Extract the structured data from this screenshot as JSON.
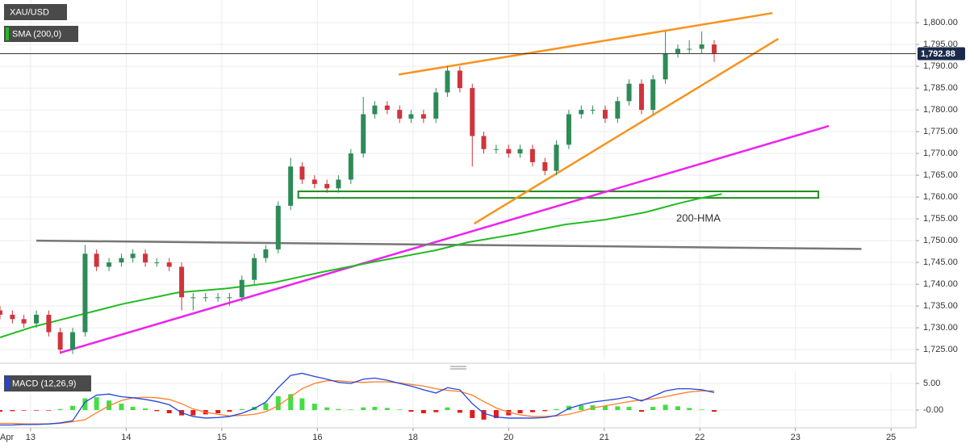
{
  "chart_data": [
    {
      "type": "candlestick",
      "title": "XAU/USD",
      "x": [
        -0.32,
        -0.19,
        -0.07,
        0.06,
        0.19,
        0.31,
        0.44,
        0.57,
        0.69,
        0.82,
        0.95,
        1.07,
        1.2,
        1.32,
        1.45,
        1.58,
        1.7,
        1.83,
        1.96,
        2.08,
        2.21,
        2.34,
        2.46,
        2.59,
        2.72,
        2.84,
        2.97,
        3.1,
        3.22,
        3.35,
        3.48,
        3.6,
        3.73,
        3.86,
        3.98,
        4.11,
        4.24,
        4.36,
        4.49,
        4.62,
        4.74,
        4.87,
        5.0,
        5.12,
        5.25,
        5.38,
        5.5,
        5.63,
        5.76,
        5.88,
        6.01,
        6.14,
        6.26,
        6.39,
        6.51,
        6.64,
        6.77,
        6.89,
        7.02,
        7.15
      ],
      "open": [
        1734,
        1733,
        1732,
        1731,
        1733,
        1729,
        1725,
        1729,
        1747,
        1744,
        1745,
        1746,
        1747,
        1745,
        1745,
        1744,
        1737,
        1737,
        1737,
        1737,
        1737,
        1741,
        1746,
        1748,
        1758,
        1767,
        1764,
        1763,
        1762,
        1764,
        1770,
        1779,
        1781,
        1780,
        1778,
        1779,
        1778,
        1784,
        1789,
        1785,
        1774,
        1771,
        1771,
        1770,
        1771,
        1768,
        1766,
        1772,
        1779,
        1780,
        1780,
        1778,
        1782,
        1786,
        1780,
        1787,
        1793,
        1794,
        1794,
        1795
      ],
      "high": [
        1735,
        1734,
        1733,
        1734,
        1734,
        1730,
        1730,
        1749,
        1748,
        1746,
        1747,
        1748,
        1748,
        1746,
        1746,
        1745,
        1738,
        1738,
        1738,
        1738,
        1742,
        1747,
        1749,
        1759,
        1769,
        1768,
        1765,
        1764,
        1765,
        1771,
        1783,
        1782,
        1782,
        1781,
        1780,
        1780,
        1785,
        1790,
        1790,
        1786,
        1775,
        1772,
        1772,
        1772,
        1772,
        1769,
        1773,
        1780,
        1781,
        1781,
        1781,
        1783,
        1787,
        1787,
        1788,
        1798,
        1795,
        1796,
        1798,
        1796
      ],
      "low": [
        1732,
        1731,
        1730,
        1730,
        1728,
        1724,
        1724,
        1728,
        1743,
        1743,
        1744,
        1745,
        1744,
        1744,
        1743,
        1734,
        1734,
        1736,
        1736,
        1735,
        1736,
        1740,
        1745,
        1747,
        1757,
        1763,
        1762,
        1761,
        1761,
        1763,
        1769,
        1778,
        1779,
        1777,
        1777,
        1777,
        1777,
        1783,
        1784,
        1767,
        1770,
        1770,
        1769,
        1769,
        1767,
        1765,
        1765,
        1771,
        1778,
        1779,
        1777,
        1777,
        1781,
        1779,
        1779,
        1786,
        1792,
        1793,
        1793,
        1791
      ],
      "close": [
        1733,
        1732,
        1731,
        1733,
        1729,
        1725,
        1729,
        1747,
        1744,
        1745,
        1746,
        1747,
        1745,
        1745,
        1744,
        1737,
        1737,
        1737,
        1737,
        1737,
        1741,
        1746,
        1748,
        1758,
        1767,
        1764,
        1763,
        1762,
        1764,
        1770,
        1779,
        1781,
        1780,
        1778,
        1779,
        1778,
        1784,
        1789,
        1785,
        1774,
        1771,
        1771,
        1770,
        1771,
        1768,
        1766,
        1772,
        1779,
        1780,
        1780,
        1778,
        1782,
        1786,
        1780,
        1787,
        1793,
        1794,
        1794,
        1795,
        1793
      ],
      "up_color": "#2e8b57",
      "down_color": "#d0343b",
      "xlim": [
        -0.32,
        9.26
      ],
      "ylim": [
        1722.8,
        1805.2
      ],
      "month_label": "Apr",
      "xticks": [
        {
          "value": 0,
          "label": "13"
        },
        {
          "value": 1,
          "label": "14"
        },
        {
          "value": 2,
          "label": "15"
        },
        {
          "value": 3,
          "label": "16"
        },
        {
          "value": 4,
          "label": "18"
        },
        {
          "value": 5,
          "label": "20"
        },
        {
          "value": 6,
          "label": "21"
        },
        {
          "value": 7,
          "label": "22"
        },
        {
          "value": 8,
          "label": "23"
        },
        {
          "value": 9,
          "label": "25"
        }
      ],
      "yticks": [
        {
          "value": 1725,
          "label": "1,725.00"
        },
        {
          "value": 1730,
          "label": "1,730.00"
        },
        {
          "value": 1735,
          "label": "1,735.00"
        },
        {
          "value": 1740,
          "label": "1,740.00"
        },
        {
          "value": 1745,
          "label": "1,745.00"
        },
        {
          "value": 1750,
          "label": "1,750.00"
        },
        {
          "value": 1755,
          "label": "1,755.00"
        },
        {
          "value": 1760,
          "label": "1,760.00"
        },
        {
          "value": 1765,
          "label": "1,765.00"
        },
        {
          "value": 1770,
          "label": "1,770.00"
        },
        {
          "value": 1775,
          "label": "1,775.00"
        },
        {
          "value": 1780,
          "label": "1,780.00"
        },
        {
          "value": 1785,
          "label": "1,785.00"
        },
        {
          "value": 1790,
          "label": "1,790.00"
        },
        {
          "value": 1795,
          "label": "1,795.00"
        },
        {
          "value": 1800,
          "label": "1,800.00"
        }
      ],
      "grid": true,
      "sma": {
        "name": "SMA (200,0)",
        "color": "#22bb22",
        "x": [
          -0.32,
          0.02,
          0.52,
          0.95,
          1.54,
          2.04,
          2.55,
          3.05,
          3.56,
          4.24,
          4.57,
          5.08,
          5.59,
          6.01,
          6.43,
          6.77,
          7.02,
          7.23
        ],
        "values": [
          1727.8,
          1730.2,
          1733,
          1735.4,
          1738.1,
          1739,
          1740.4,
          1742.8,
          1745,
          1747.8,
          1749.6,
          1751.5,
          1753.7,
          1754.8,
          1756.5,
          1758.5,
          1759.8,
          1760.7
        ]
      },
      "last_price": {
        "value": 1792.88,
        "label": "1,792.88",
        "color": "#1b2a4a"
      },
      "trendlines": [
        {
          "color": "#f7931e",
          "x": [
            3.85,
            7.76
          ],
          "y": [
            1788.1,
            1802.2
          ]
        },
        {
          "color": "#f7931e",
          "x": [
            4.64,
            7.82
          ],
          "y": [
            1753.9,
            1796.3
          ]
        },
        {
          "color": "#ee22ee",
          "x": [
            0.31,
            8.35
          ],
          "y": [
            1724.3,
            1776.3
          ]
        },
        {
          "color": "#777777",
          "x": [
            0.06,
            8.69
          ],
          "y": [
            1750,
            1748.1
          ]
        }
      ],
      "zone": {
        "color": "#1e8c1e",
        "x": [
          2.8,
          8.24
        ],
        "y": [
          1761.3,
          1759.8
        ]
      },
      "annotation": {
        "text": "200-HMA",
        "color": "#22bb22"
      }
    },
    {
      "type": "macd",
      "title": "MACD (12,26,9)",
      "macd": [
        -2.8,
        -2.8,
        -2.7,
        -2.7,
        -2.6,
        -2.4,
        -2.0,
        1.5,
        2.8,
        3.0,
        2.5,
        2.3,
        2.0,
        1.6,
        1.0,
        -0.5,
        -1.2,
        -1.5,
        -1.4,
        -1.2,
        -0.6,
        0.3,
        1.5,
        4.2,
        6.5,
        6.9,
        6.3,
        5.8,
        5.2,
        5.0,
        5.8,
        6.0,
        5.6,
        5.0,
        4.5,
        3.8,
        3.2,
        4.2,
        3.8,
        1.2,
        -0.6,
        -1.3,
        -1.5,
        -1.5,
        -1.5,
        -1.4,
        -1.0,
        0.3,
        1.0,
        1.5,
        1.8,
        2.1,
        2.5,
        1.7,
        2.6,
        3.6,
        4.0,
        4.0,
        3.8,
        3.3
      ],
      "signal": [
        -2.5,
        -2.5,
        -2.6,
        -2.6,
        -2.6,
        -2.5,
        -2.2,
        -1.8,
        -0.5,
        0.8,
        1.8,
        2.3,
        2.4,
        2.3,
        2.0,
        1.2,
        0.2,
        -0.4,
        -0.8,
        -1.1,
        -1.0,
        -0.8,
        -0.3,
        0.8,
        2.5,
        4.0,
        5.0,
        5.5,
        5.5,
        5.3,
        5.2,
        5.3,
        5.3,
        5.1,
        4.8,
        4.5,
        4.0,
        3.7,
        3.5,
        2.8,
        1.6,
        0.4,
        -0.4,
        -0.9,
        -1.2,
        -1.2,
        -1.1,
        -0.8,
        -0.2,
        0.4,
        0.8,
        1.2,
        1.6,
        1.9,
        2.1,
        2.5,
        3.0,
        3.4,
        3.6,
        3.6
      ],
      "histogram": [
        -0.3,
        -0.2,
        -0.1,
        -0.1,
        -0.1,
        0.2,
        0.8,
        2.2,
        2.4,
        1.8,
        1.2,
        0.6,
        0.3,
        -0.2,
        -0.6,
        -1,
        -1,
        -0.8,
        -0.6,
        -0.3,
        0.2,
        0.6,
        1.3,
        2.6,
        3,
        2.2,
        1.2,
        0.5,
        0.2,
        0.1,
        0.5,
        0.6,
        0.4,
        0.1,
        -0.3,
        -0.6,
        -0.4,
        0.5,
        -0.5,
        -1.5,
        -1.8,
        -1.5,
        -1,
        -0.6,
        -0.4,
        -0.2,
        0.2,
        0.8,
        0.9,
        0.9,
        0.8,
        0.7,
        0.6,
        -0.3,
        0.6,
        1,
        0.7,
        0.4,
        0.1,
        -0.3
      ],
      "macd_color": "#2244dd",
      "signal_color": "#ff7f27",
      "hist_up_color": "#44dd44",
      "hist_down_color": "#e01c1c",
      "ylim": [
        -3.33,
        7.27
      ],
      "yticks": [
        {
          "value": 5,
          "label": "5.00"
        },
        {
          "value": 0,
          "label": "-0.00"
        }
      ]
    }
  ]
}
